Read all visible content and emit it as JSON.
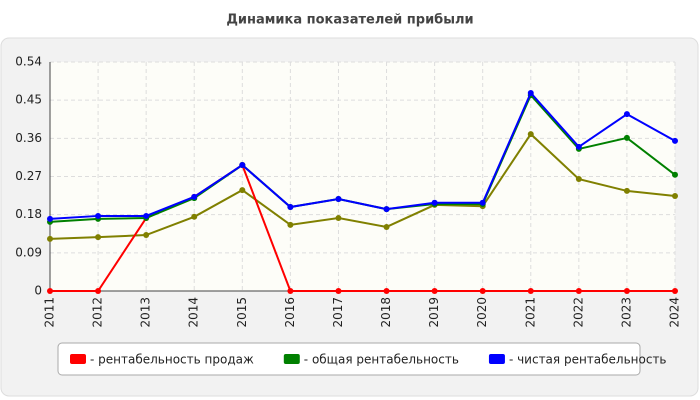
{
  "chart_data": {
    "type": "line",
    "title": "Динамика показателей прибыли",
    "categories": [
      "2011",
      "2012",
      "2013",
      "2014",
      "2015",
      "2016",
      "2017",
      "2018",
      "2019",
      "2020",
      "2021",
      "2022",
      "2023",
      "2024"
    ],
    "series": [
      {
        "color": "#808000",
        "values": [
          0.123,
          0.127,
          0.132,
          0.175,
          0.238,
          0.156,
          0.172,
          0.151,
          0.203,
          0.2,
          0.37,
          0.264,
          0.236,
          0.224
        ]
      },
      {
        "name": "- рентабельность продаж",
        "color": "#ff0000",
        "values": [
          0,
          0,
          0.172,
          0.222,
          0.297,
          0,
          0,
          0,
          0,
          0,
          0,
          0,
          0,
          0
        ]
      },
      {
        "name": "- общая рентабельность",
        "color": "#008000",
        "values": [
          0.163,
          0.17,
          0.172,
          0.219,
          0.297,
          0.198,
          0.217,
          0.193,
          0.205,
          0.205,
          0.462,
          0.335,
          0.361,
          0.274
        ]
      },
      {
        "name": "- чистая рентабельность",
        "color": "#0000ff",
        "values": [
          0.17,
          0.177,
          0.177,
          0.222,
          0.297,
          0.198,
          0.217,
          0.193,
          0.208,
          0.208,
          0.467,
          0.34,
          0.417,
          0.354
        ]
      }
    ],
    "ylim": [
      0,
      0.54
    ],
    "yticks": [
      0,
      0.09,
      0.18,
      0.27,
      0.36,
      0.45,
      0.54
    ],
    "grid": true,
    "legend": "bottom"
  }
}
